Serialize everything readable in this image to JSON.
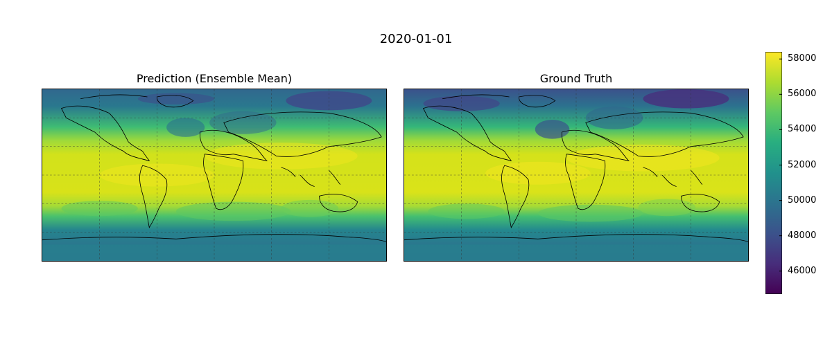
{
  "figure": {
    "suptitle": "2020-01-01"
  },
  "panels": [
    {
      "title": "Prediction (Ensemble Mean)"
    },
    {
      "title": "Ground Truth"
    }
  ],
  "colorbar": {
    "colormap": "viridis",
    "min": 44700,
    "max": 58400,
    "ticks": [
      "46000",
      "48000",
      "50000",
      "52000",
      "54000",
      "56000",
      "58000"
    ],
    "colors": [
      "#440154",
      "#472d7b",
      "#3b528b",
      "#2c728e",
      "#21918c",
      "#28ae80",
      "#5ec962",
      "#addc30",
      "#fde725"
    ]
  },
  "chart_data": {
    "type": "heatmap",
    "title": "2020-01-01",
    "projection": "PlateCarree",
    "grid": true,
    "panels": [
      "Prediction (Ensemble Mean)",
      "Ground Truth"
    ],
    "zones": [
      {
        "band": "polar north",
        "approx_value": 50000
      },
      {
        "band": "arctic minima",
        "approx_value": 47000
      },
      {
        "band": "mid-latitude north",
        "approx_value": 54000
      },
      {
        "band": "tropics",
        "approx_value": 57600
      },
      {
        "band": "mid-latitude south",
        "approx_value": 54500
      },
      {
        "band": "southern ocean",
        "approx_value": 51500
      },
      {
        "band": "antarctica",
        "approx_value": 50500
      }
    ],
    "colorbar_range": [
      44700,
      58400
    ]
  }
}
